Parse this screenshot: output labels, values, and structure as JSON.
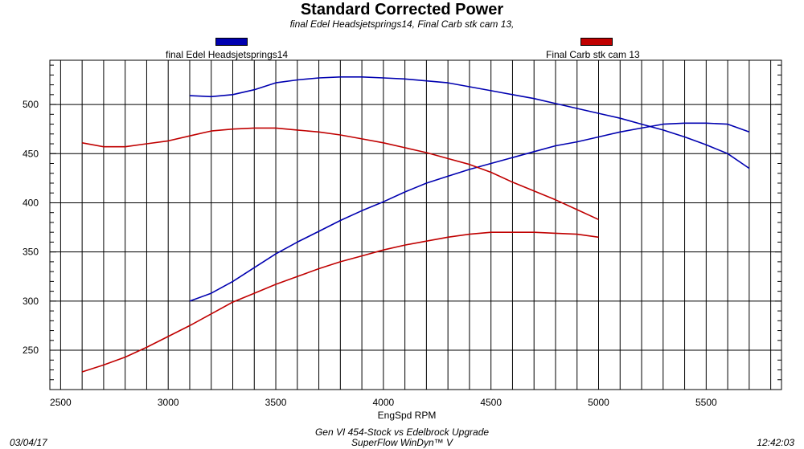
{
  "chart_data": {
    "type": "line",
    "title": "Standard Corrected Power",
    "subtitle": "final Edel Headsjetsprings14, Final Carb stk cam 13,",
    "xlabel": "EngSpd RPM",
    "xlim": [
      2450,
      5850
    ],
    "ylim": [
      210,
      545
    ],
    "x_ticks": [
      2500,
      3000,
      3500,
      4000,
      4500,
      5000,
      5500
    ],
    "y_ticks": [
      250,
      300,
      350,
      400,
      450,
      500
    ],
    "grid": true,
    "legend": "top",
    "series": [
      {
        "name": "final Edel Headsjetsprings14",
        "color": "#0000b0",
        "curves": [
          {
            "x": [
              3100,
              3200,
              3300,
              3400,
              3500,
              3600,
              3700,
              3800,
              3900,
              4000,
              4100,
              4200,
              4300,
              4400,
              4500,
              4600,
              4700,
              4800,
              4900,
              5000,
              5100,
              5200,
              5300,
              5400,
              5500,
              5600,
              5700
            ],
            "y": [
              509,
              508,
              510,
              515,
              522,
              525,
              527,
              528,
              528,
              527,
              526,
              524,
              522,
              518,
              514,
              510,
              506,
              501,
              496,
              491,
              486,
              480,
              474,
              467,
              459,
              450,
              435
            ]
          },
          {
            "x": [
              3100,
              3200,
              3300,
              3400,
              3500,
              3600,
              3700,
              3800,
              3900,
              4000,
              4100,
              4200,
              4300,
              4400,
              4500,
              4600,
              4700,
              4800,
              4900,
              5000,
              5100,
              5200,
              5300,
              5400,
              5500,
              5600,
              5700
            ],
            "y": [
              300,
              308,
              320,
              334,
              348,
              360,
              371,
              382,
              392,
              401,
              411,
              420,
              427,
              434,
              440,
              446,
              452,
              458,
              462,
              467,
              472,
              476,
              480,
              481,
              481,
              480,
              472
            ]
          }
        ]
      },
      {
        "name": "Final Carb stk cam 13",
        "color": "#c00000",
        "curves": [
          {
            "x": [
              2600,
              2700,
              2800,
              2900,
              3000,
              3100,
              3200,
              3300,
              3400,
              3500,
              3600,
              3700,
              3800,
              3900,
              4000,
              4100,
              4200,
              4300,
              4400,
              4500,
              4600,
              4700,
              4800,
              4900,
              5000
            ],
            "y": [
              461,
              457,
              457,
              460,
              463,
              468,
              473,
              475,
              476,
              476,
              474,
              472,
              469,
              465,
              461,
              456,
              451,
              445,
              439,
              431,
              421,
              412,
              403,
              393,
              383
            ]
          },
          {
            "x": [
              2600,
              2700,
              2800,
              2900,
              3000,
              3100,
              3200,
              3300,
              3400,
              3500,
              3600,
              3700,
              3800,
              3900,
              4000,
              4100,
              4200,
              4300,
              4400,
              4500,
              4600,
              4700,
              4800,
              4900,
              5000
            ],
            "y": [
              228,
              235,
              243,
              253,
              264,
              275,
              287,
              299,
              308,
              317,
              325,
              333,
              340,
              346,
              352,
              357,
              361,
              365,
              368,
              370,
              370,
              370,
              369,
              368,
              365
            ]
          }
        ]
      }
    ]
  },
  "footer": {
    "line1": "Gen VI 454-Stock vs Edelbrock Upgrade",
    "line2": "SuperFlow WinDyn™ V",
    "date": "03/04/17",
    "time": "12:42:03"
  }
}
